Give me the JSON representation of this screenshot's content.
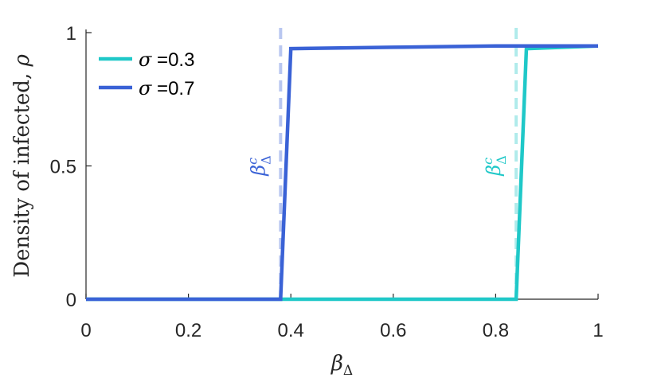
{
  "chart_data": {
    "type": "line",
    "xlabel": "βΔ",
    "ylabel": "Density of infected, ρ",
    "xlim": [
      0,
      1
    ],
    "ylim": [
      0,
      1
    ],
    "xticks": [
      "0",
      "0.2",
      "0.4",
      "0.6",
      "0.8",
      "1"
    ],
    "xtick_values": [
      0,
      0.2,
      0.4,
      0.6,
      0.8,
      1
    ],
    "yticks": [
      "0",
      "0.5",
      "1"
    ],
    "ytick_values": [
      0,
      0.5,
      1
    ],
    "grid": false,
    "legend_position": "top-left",
    "series": [
      {
        "name": "σ =0.3",
        "color": "#1fc8c8",
        "x": [
          0,
          0.38,
          0.84,
          0.86,
          1
        ],
        "y": [
          0,
          0,
          0,
          0.94,
          0.95
        ]
      },
      {
        "name": "σ =0.7",
        "color": "#3a62d6",
        "x": [
          0,
          0.38,
          0.4,
          0.6,
          0.8,
          1
        ],
        "y": [
          0,
          0,
          0.94,
          0.945,
          0.95,
          0.95
        ]
      }
    ],
    "annotations": [
      {
        "text": "βcΔ",
        "x": 0.38,
        "color": "#3a62d6"
      },
      {
        "text": "βcΔ",
        "x": 0.84,
        "color": "#1fc8c8"
      }
    ]
  }
}
